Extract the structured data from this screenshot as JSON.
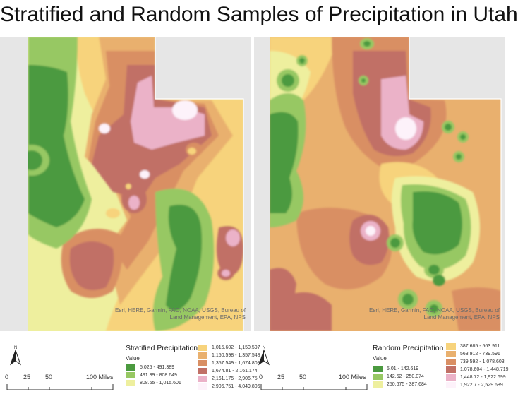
{
  "title": "Stratified and Random Samples of Precipitation in Utah",
  "colors": {
    "c1": "#4b9a3f",
    "c2": "#97c863",
    "c3": "#eeef9e",
    "c4": "#f7d37c",
    "c5": "#e9b06e",
    "c6": "#d98f64",
    "c7": "#c17066",
    "c8": "#ebb2c8",
    "c9": "#fdf2fa",
    "background": "#e6e6e6"
  },
  "left_map": {
    "credit_line1": "Esri, HERE, Garmin, FAO, NOAA, USGS, Bureau of",
    "credit_line2": "Land Management, EPA, NPS",
    "legend": {
      "title": "Stratified Precipitation",
      "subtitle": "Value",
      "items": [
        {
          "label": "5.025 - 491.389",
          "color": "#4b9a3f"
        },
        {
          "label": "491.39 - 808.649",
          "color": "#97c863"
        },
        {
          "label": "808.65 - 1,015.601",
          "color": "#eeef9e"
        },
        {
          "label": "1,015.602 - 1,150.597",
          "color": "#f7d37c"
        },
        {
          "label": "1,150.598 - 1,357.548",
          "color": "#e9b06e"
        },
        {
          "label": "1,357.549 - 1,674.809",
          "color": "#d98f64"
        },
        {
          "label": "1,674.81 - 2,161.174",
          "color": "#c17066"
        },
        {
          "label": "2,161.175 - 2,906.75",
          "color": "#ebb2c8"
        },
        {
          "label": "2,906.751 - 4,049.806",
          "color": "#fdf2fa"
        }
      ]
    },
    "scale": {
      "t0": "0",
      "t1": "25",
      "t2": "50",
      "t3": "100 Miles"
    },
    "north_label": "N"
  },
  "right_map": {
    "credit_line1": "Esri, HERE, Garmin, FAO, NOAA, USGS, Bureau of",
    "credit_line2": "Land Management, EPA, NPS",
    "legend": {
      "title": "Random Precipitation",
      "subtitle": "Value",
      "items": [
        {
          "label": "5.01 - 142.619",
          "color": "#4b9a3f"
        },
        {
          "label": "142.62 - 250.074",
          "color": "#97c863"
        },
        {
          "label": "250.675 - 387.684",
          "color": "#eeef9e"
        },
        {
          "label": "387.685 - 563.911",
          "color": "#f7d37c"
        },
        {
          "label": "563.912 - 739.591",
          "color": "#e9b06e"
        },
        {
          "label": "739.592 - 1,078.603",
          "color": "#d98f64"
        },
        {
          "label": "1,078.604 - 1,448.719",
          "color": "#c17066"
        },
        {
          "label": "1,448.72 - 1,922.699",
          "color": "#ebb2c8"
        },
        {
          "label": "1,922.7 - 2,529.689",
          "color": "#fdf2fa"
        }
      ]
    },
    "scale": {
      "t0": "0",
      "t1": "25",
      "t2": "50",
      "t3": "100 Miles"
    },
    "north_label": "N"
  }
}
